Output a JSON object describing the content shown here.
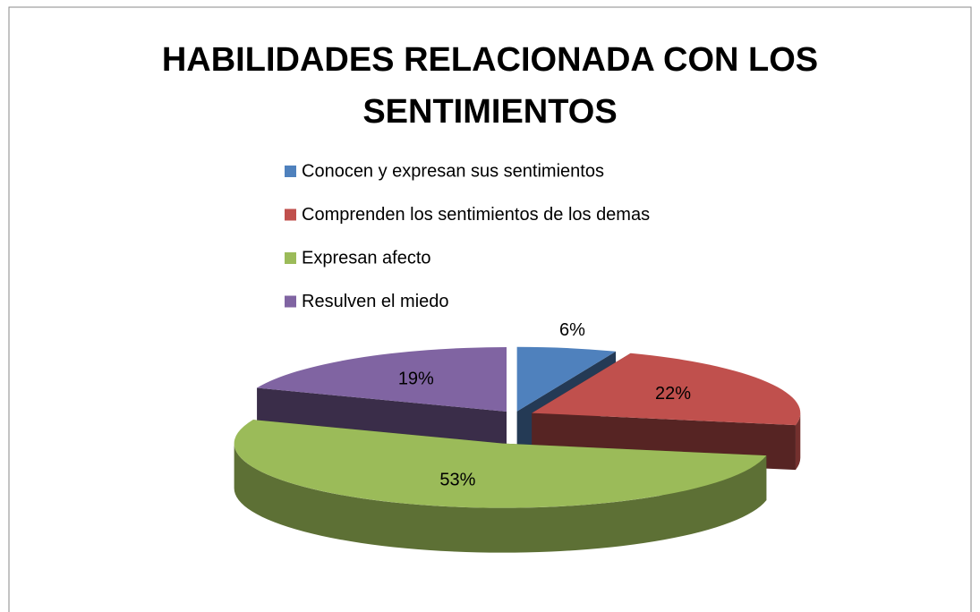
{
  "chart_data": {
    "type": "pie",
    "title": "HABILIDADES RELACIONADA CON LOS SENTIMIENTOS",
    "categories": [
      "Conocen y expresan sus sentimientos",
      "Comprenden los sentimientos de los demas",
      "Expresan afecto",
      "Resulven el miedo"
    ],
    "values": [
      6,
      22,
      53,
      19
    ],
    "value_labels": [
      "6%",
      "22%",
      "53%",
      "19%"
    ],
    "colors": [
      "#4f81bd",
      "#c0504d",
      "#9bbb59",
      "#8064a2"
    ],
    "legend": "top"
  }
}
